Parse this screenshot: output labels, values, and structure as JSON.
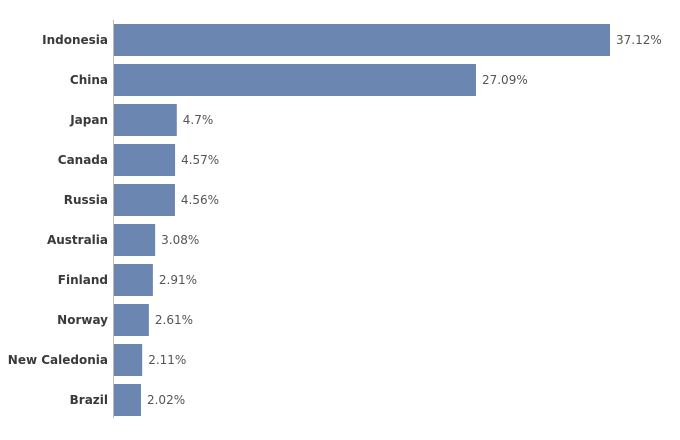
{
  "chart_data": {
    "type": "bar",
    "orientation": "horizontal",
    "categories": [
      "Indonesia",
      "China",
      "Japan",
      "Canada",
      "Russia",
      "Australia",
      "Finland",
      "Norway",
      "New Caledonia",
      "Brazil"
    ],
    "values": [
      37.12,
      27.09,
      4.7,
      4.57,
      4.56,
      3.08,
      2.91,
      2.61,
      2.11,
      2.02
    ],
    "value_labels": [
      "37.12%",
      "27.09%",
      "4.7%",
      "4.57%",
      "4.56%",
      "3.08%",
      "2.91%",
      "2.61%",
      "2.11%",
      "2.02%"
    ],
    "title": "",
    "xlabel": "",
    "ylabel": "",
    "xlim": [
      0,
      37.12
    ],
    "grid": false,
    "legend": "none",
    "bar_color": "#6b86b1",
    "axis_color": "#bdbdbd",
    "label_color": "#3a3a3a",
    "value_label_color": "#555555"
  }
}
